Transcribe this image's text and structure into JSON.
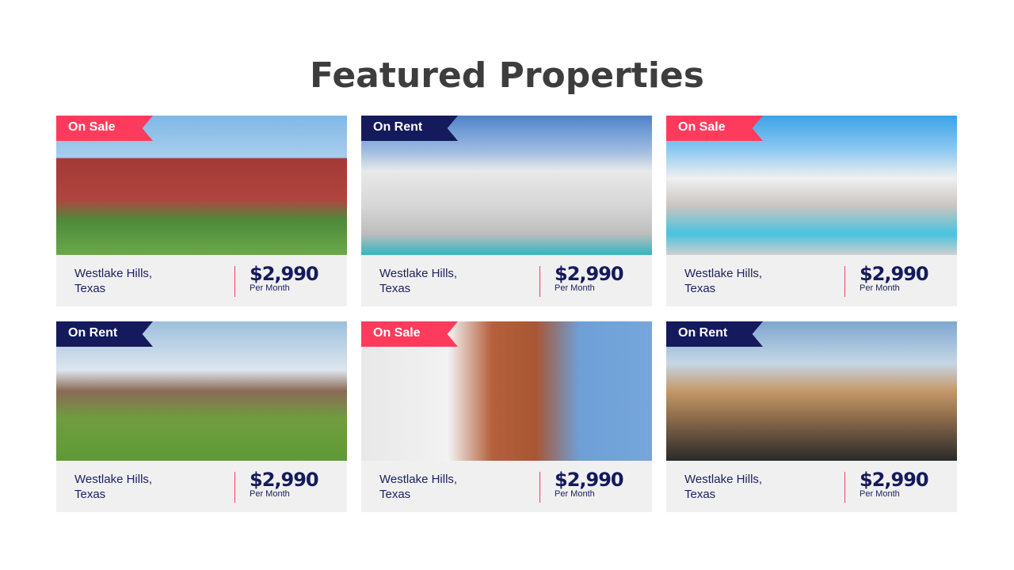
{
  "title": "Featured Properties",
  "colors": {
    "sale": "#fe3b5c",
    "rent": "#141a5c"
  },
  "cards": [
    {
      "tag": "On Sale",
      "location_line1": "Westlake Hills,",
      "location_line2": "Texas",
      "price": "$2,990",
      "period": "Per Month",
      "image": "red two-story house with lawn"
    },
    {
      "tag": "On Rent",
      "location_line1": "Westlake Hills,",
      "location_line2": "Texas",
      "price": "$2,990",
      "period": "Per Month",
      "image": "modern white house with pool"
    },
    {
      "tag": "On Sale",
      "location_line1": "Westlake Hills,",
      "location_line2": "Texas",
      "price": "$2,990",
      "period": "Per Month",
      "image": "white house with swimming pool"
    },
    {
      "tag": "On Rent",
      "location_line1": "Westlake Hills,",
      "location_line2": "Texas",
      "price": "$2,990",
      "period": "Per Month",
      "image": "brick house with green lawn"
    },
    {
      "tag": "On Sale",
      "location_line1": "Westlake Hills,",
      "location_line2": "Texas",
      "price": "$2,990",
      "period": "Per Month",
      "image": "modern wood and white house"
    },
    {
      "tag": "On Rent",
      "location_line1": "Westlake Hills,",
      "location_line2": "Texas",
      "price": "$2,990",
      "period": "Per Month",
      "image": "modern timber house"
    }
  ]
}
